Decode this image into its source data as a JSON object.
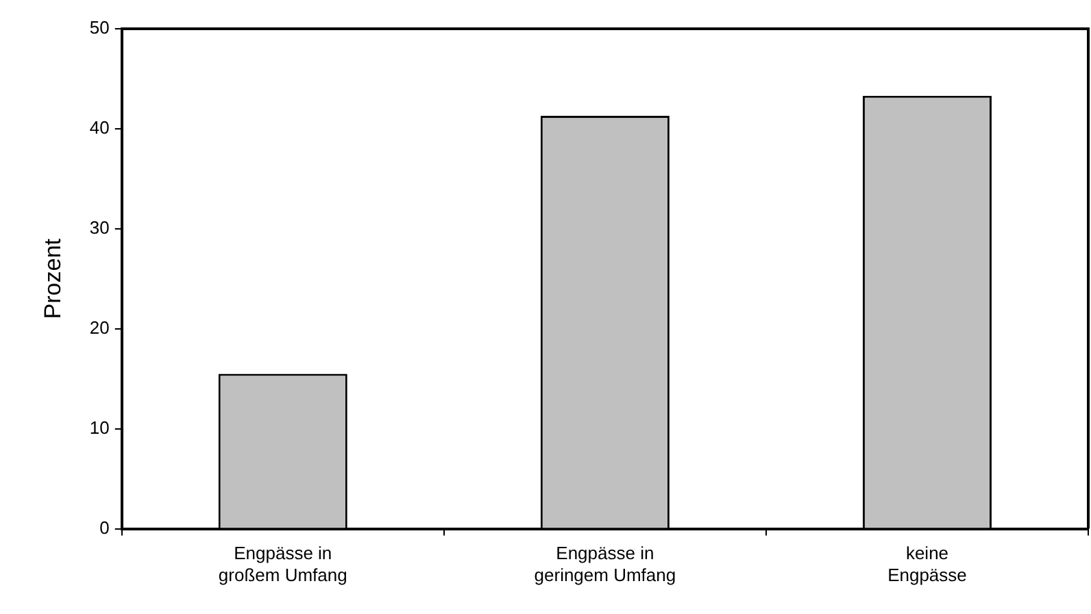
{
  "chart_data": {
    "type": "bar",
    "ylabel": "Prozent",
    "categories": [
      "Engpässe in großem Umfang",
      "Engpässe in geringem Umfang",
      "keine Engpässe"
    ],
    "values": [
      15.5,
      41.3,
      43.3
    ],
    "color": "#c0c0c0",
    "ylim": [
      0,
      50
    ],
    "yticks": [
      0,
      10,
      20,
      30,
      40,
      50
    ],
    "grid": false,
    "legend": false
  }
}
